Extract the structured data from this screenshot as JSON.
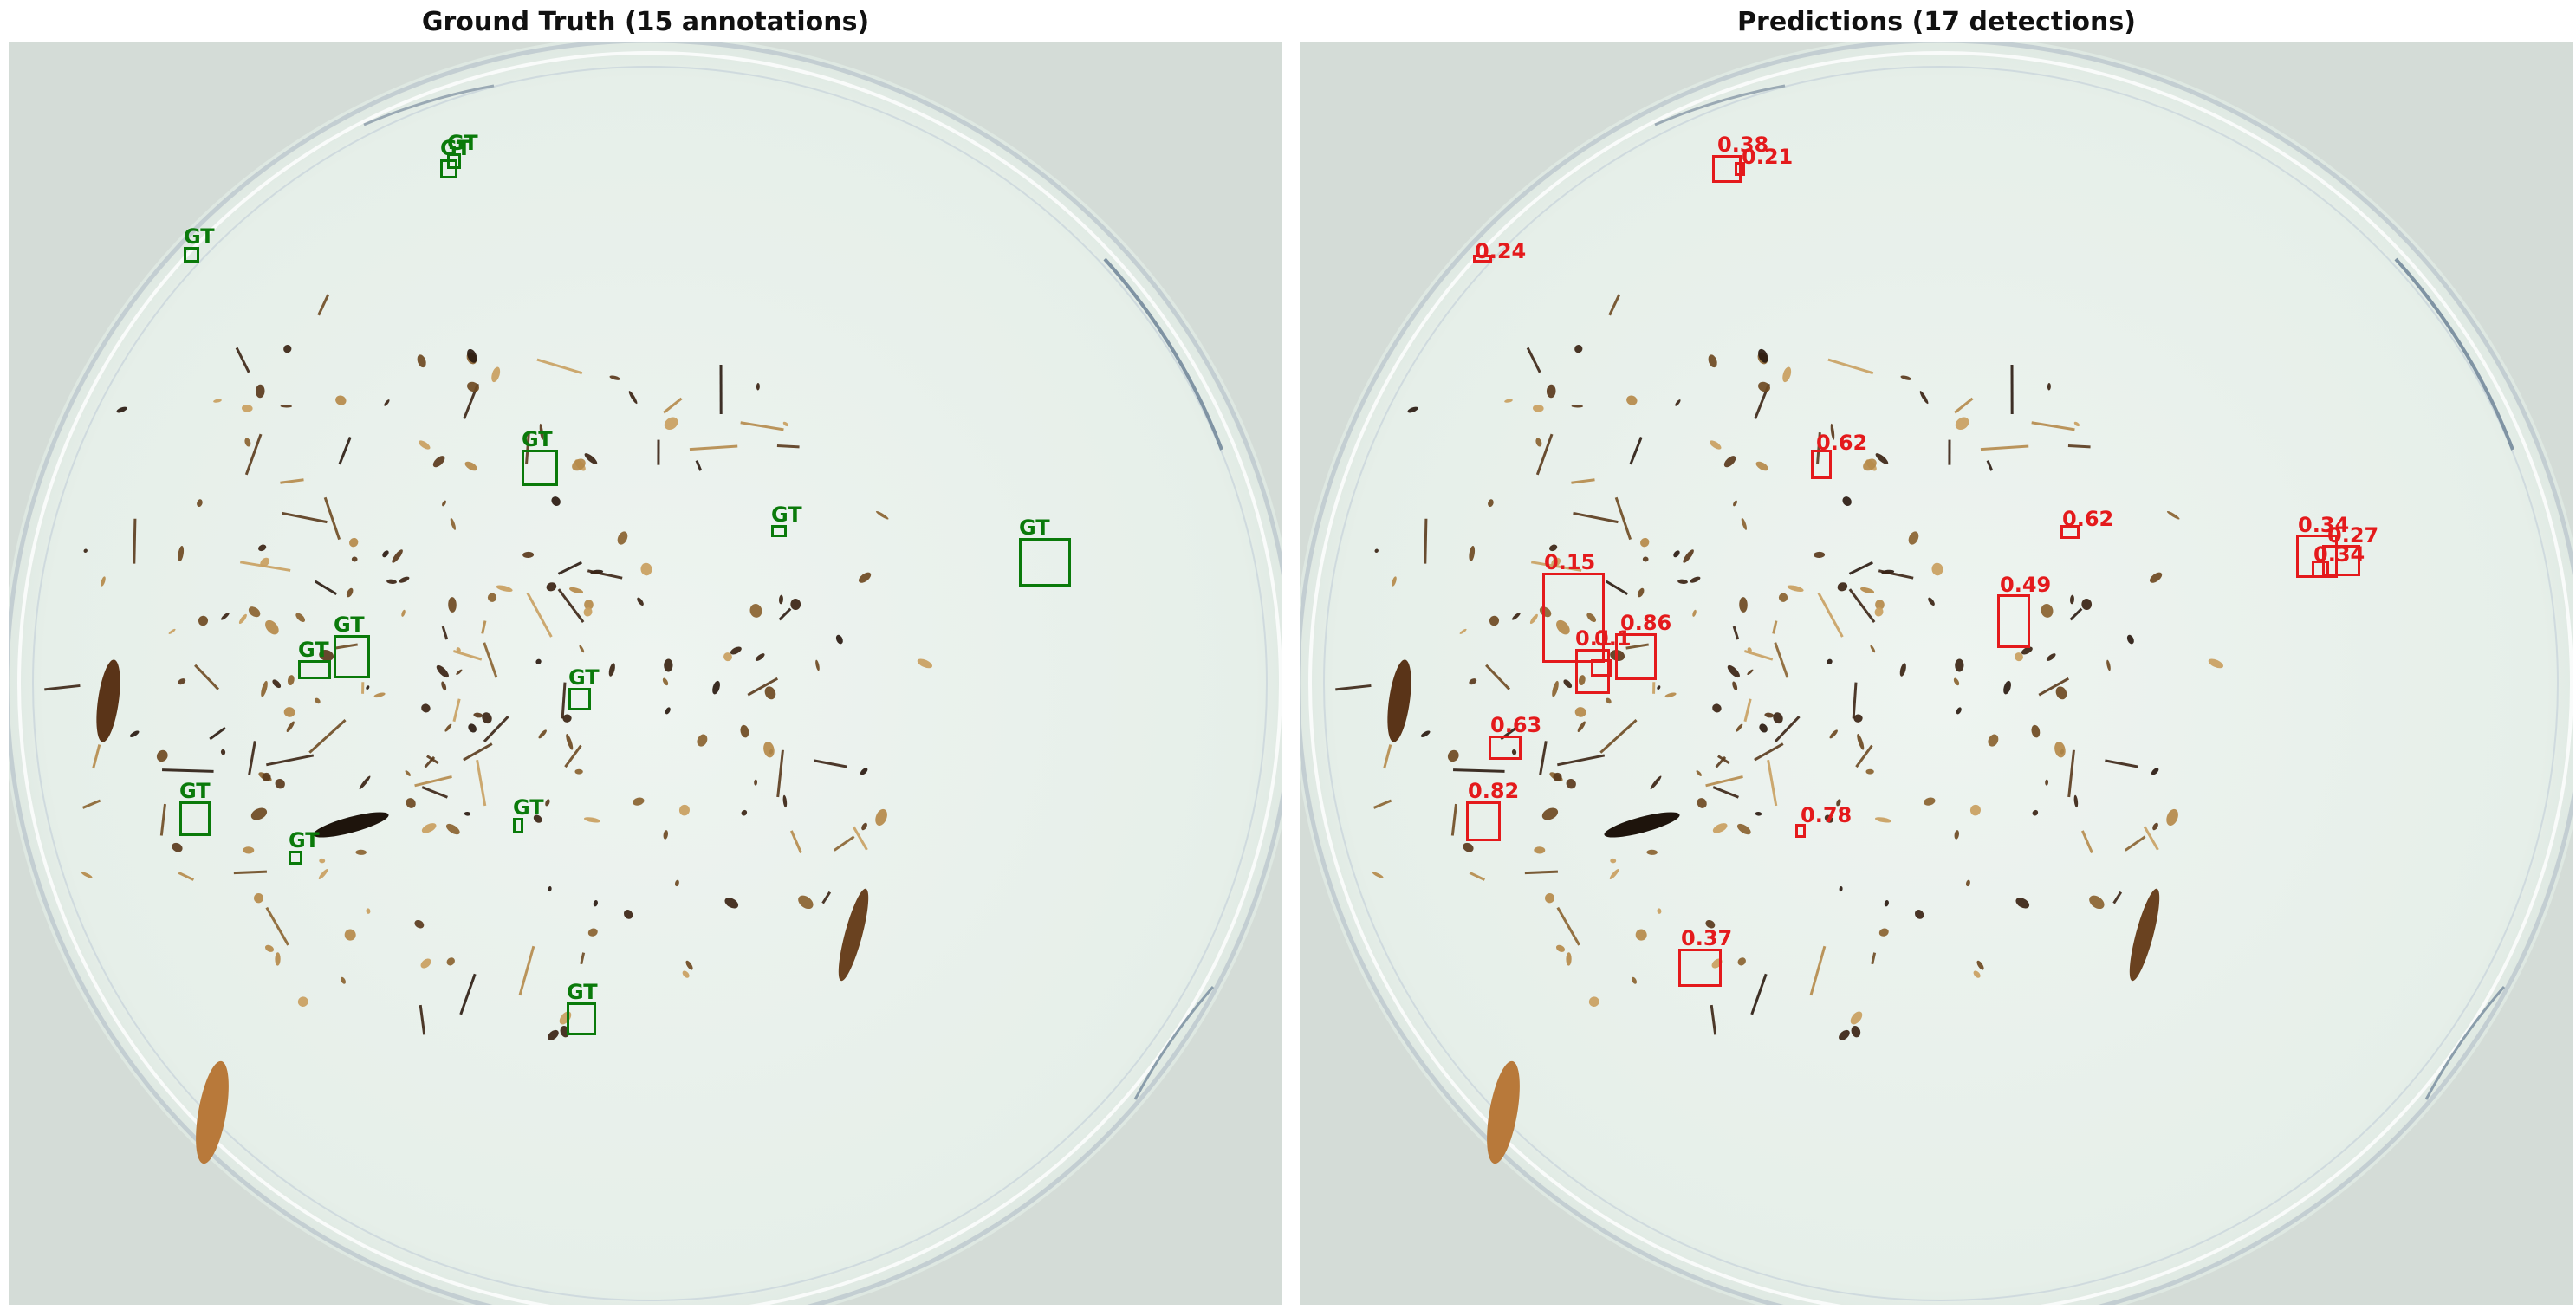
{
  "colors": {
    "gt": "#0a7a0a",
    "pred": "#e41a1c",
    "dish_bg": "#eef4f0"
  },
  "panels": {
    "gt": {
      "title": "Ground Truth (15 annotations)",
      "box_label": "GT",
      "box_color": "#0a7a0a"
    },
    "pred": {
      "title": "Predictions (17 detections)",
      "box_color": "#e41a1c",
      "scores": [
        "0.38",
        "0.21",
        "0.24",
        "0.62",
        "0.62",
        "0.34",
        "0.27",
        "0.34",
        "0.15",
        "0.49",
        "0.1",
        "0.1",
        "0.86",
        "0.63",
        "0.82",
        "0.78",
        "0.37"
      ]
    }
  }
}
